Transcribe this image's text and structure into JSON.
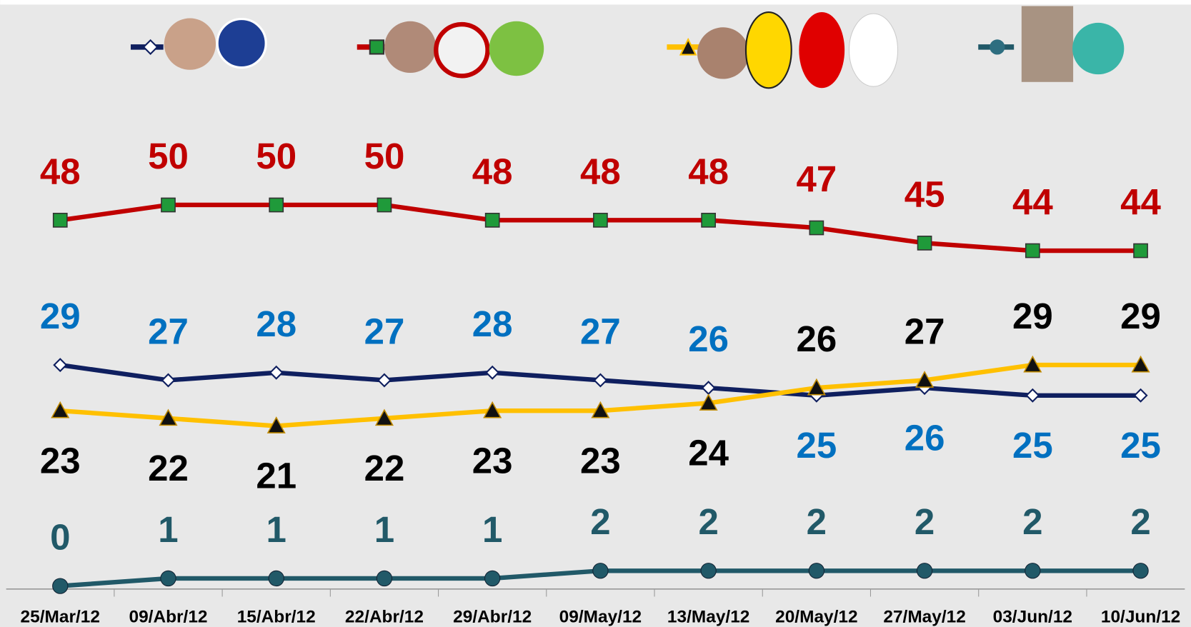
{
  "chart_data": {
    "type": "line",
    "categories": [
      "25/Mar/12",
      "09/Abr/12",
      "15/Abr/12",
      "22/Abr/12",
      "29/Abr/12",
      "09/May/12",
      "13/May/12",
      "20/May/12",
      "27/May/12",
      "03/Jun/12",
      "10/Jun/12"
    ],
    "series": [
      {
        "color": "#c00000",
        "marker": "square",
        "label_color": "#c00000",
        "values": [
          48,
          50,
          50,
          50,
          48,
          48,
          48,
          47,
          45,
          44,
          44
        ]
      },
      {
        "color": "#0f1f5f",
        "marker": "diamond",
        "label_color": "#0070c0",
        "values": [
          29,
          27,
          28,
          27,
          28,
          27,
          26,
          25,
          26,
          25,
          25
        ]
      },
      {
        "color": "#ffc000",
        "marker": "triangle",
        "label_color": "#000000",
        "values": [
          23,
          22,
          21,
          22,
          23,
          23,
          24,
          26,
          27,
          29,
          29
        ]
      },
      {
        "color": "#215968",
        "marker": "circle",
        "label_color": "#215968",
        "values": [
          0,
          1,
          1,
          1,
          1,
          2,
          2,
          2,
          2,
          2,
          2
        ]
      }
    ]
  }
}
